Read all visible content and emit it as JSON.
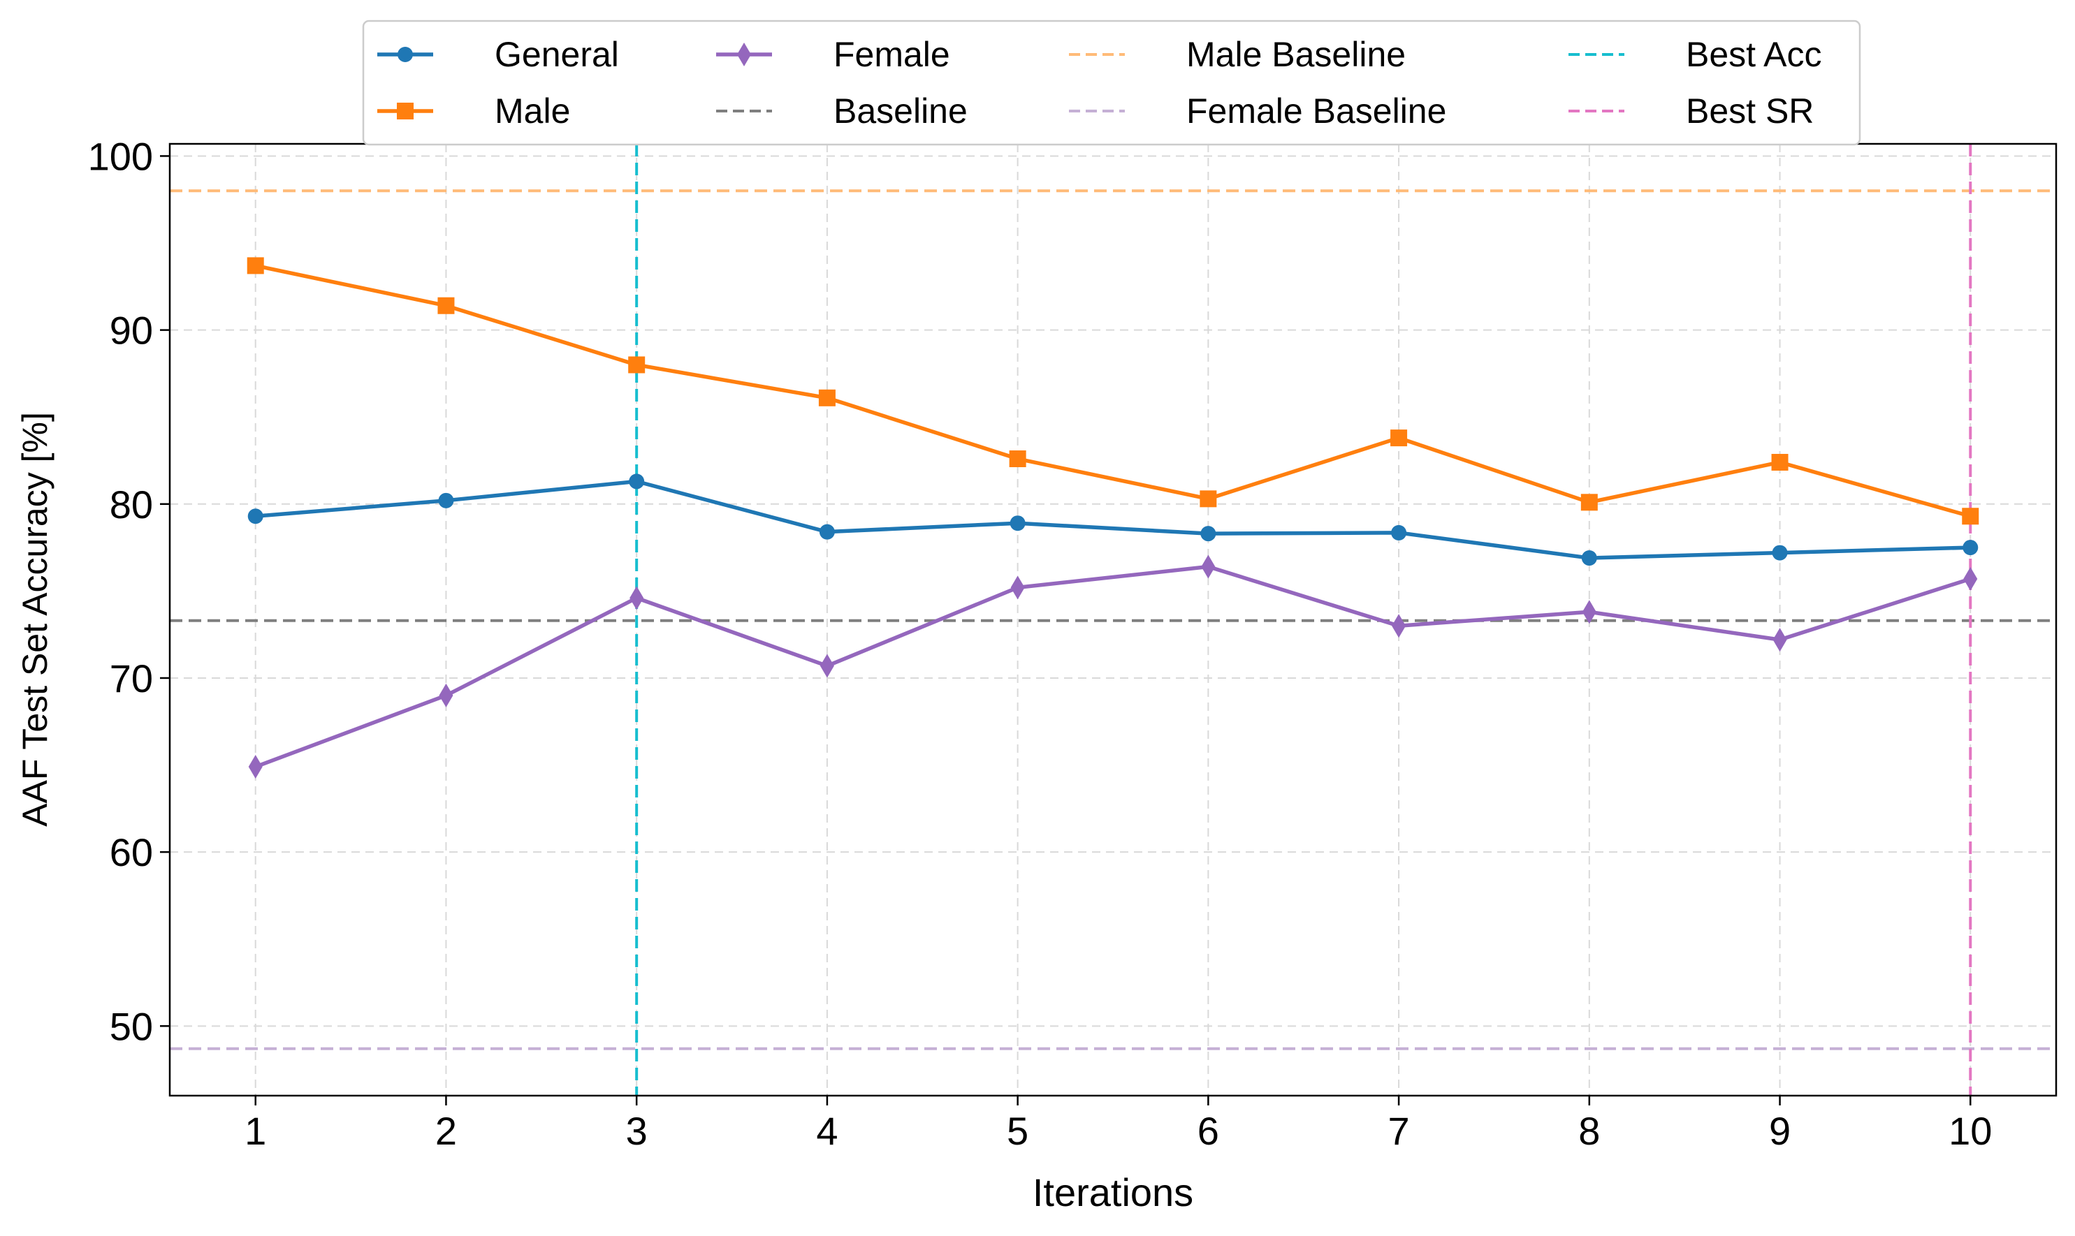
{
  "chart_data": {
    "type": "line",
    "title": "",
    "xlabel": "Iterations",
    "ylabel": "AAF Test Set Accuracy [%]",
    "x": [
      1,
      2,
      3,
      4,
      5,
      6,
      7,
      8,
      9,
      10
    ],
    "xlim": [
      0.55,
      10.45
    ],
    "ylim": [
      46,
      100.7
    ],
    "xticks": [
      1,
      2,
      3,
      4,
      5,
      6,
      7,
      8,
      9,
      10
    ],
    "yticks": [
      50,
      60,
      70,
      80,
      90,
      100
    ],
    "grid": true,
    "legend_position": "top-center, above plot, 4 columns",
    "series": [
      {
        "name": "General",
        "color": "#1f77b4",
        "marker": "circle",
        "values": [
          79.3,
          80.2,
          81.3,
          78.4,
          78.9,
          78.3,
          78.35,
          76.9,
          77.2,
          77.5
        ]
      },
      {
        "name": "Male",
        "color": "#ff7f0e",
        "marker": "square",
        "values": [
          93.7,
          91.4,
          88.0,
          86.1,
          82.6,
          80.3,
          83.8,
          80.1,
          82.4,
          79.3
        ]
      },
      {
        "name": "Female",
        "color": "#9467bd",
        "marker": "thin-diamond",
        "values": [
          64.9,
          69.0,
          74.6,
          70.7,
          75.2,
          76.4,
          73.0,
          73.8,
          72.2,
          75.7
        ]
      }
    ],
    "reference_lines": [
      {
        "name": "Baseline",
        "orientation": "horizontal",
        "value": 73.3,
        "color": "#7f7f7f",
        "style": "dashed"
      },
      {
        "name": "Male Baseline",
        "orientation": "horizontal",
        "value": 98.0,
        "color": "#ffbb78",
        "style": "dashed"
      },
      {
        "name": "Female Baseline",
        "orientation": "horizontal",
        "value": 48.7,
        "color": "#c5b0d5",
        "style": "dashed"
      },
      {
        "name": "Best Acc",
        "orientation": "vertical",
        "value": 3,
        "color": "#17becf",
        "style": "dashed"
      },
      {
        "name": "Best SR",
        "orientation": "vertical",
        "value": 10,
        "color": "#e377c2",
        "style": "dashed"
      }
    ],
    "legend_order": [
      "General",
      "Male",
      "Female",
      "Baseline",
      "Male Baseline",
      "Female Baseline",
      "Best Acc",
      "Best SR"
    ]
  }
}
